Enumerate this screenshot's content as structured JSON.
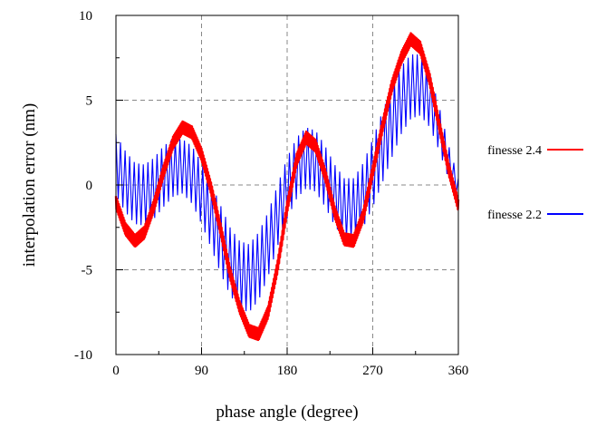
{
  "chart_data": {
    "type": "line",
    "xlabel": "phase angle (degree)",
    "ylabel": "interpolation error (nm)",
    "xlim": [
      0,
      360
    ],
    "ylim": [
      -10,
      10
    ],
    "xticks": [
      0,
      90,
      180,
      270,
      360
    ],
    "yticks": [
      -10,
      -5,
      0,
      5,
      10
    ],
    "grid": true,
    "grid_style": "dashed",
    "legend_position": "right",
    "series": [
      {
        "name": "finesse 2.4",
        "color": "#ff0000",
        "style": "thick, slightly jittered",
        "x": [
          0,
          10,
          20,
          30,
          40,
          50,
          60,
          70,
          80,
          90,
          100,
          110,
          120,
          130,
          140,
          150,
          160,
          170,
          180,
          190,
          200,
          210,
          220,
          230,
          240,
          250,
          260,
          270,
          280,
          290,
          300,
          310,
          320,
          330,
          340,
          350,
          360
        ],
        "y": [
          -1.0,
          -2.6,
          -3.3,
          -2.8,
          -1.2,
          0.8,
          2.5,
          3.4,
          3.1,
          1.8,
          -0.2,
          -2.6,
          -5.2,
          -7.2,
          -8.6,
          -8.8,
          -7.5,
          -4.8,
          -1.3,
          1.5,
          2.8,
          2.3,
          0.6,
          -1.6,
          -3.2,
          -3.3,
          -1.8,
          0.8,
          3.4,
          5.8,
          7.5,
          8.6,
          8.1,
          6.2,
          3.5,
          0.9,
          -1.2
        ]
      },
      {
        "name": "finesse 2.2",
        "color": "#0000ff",
        "style": "oscillating envelope",
        "x": [
          0,
          10,
          20,
          30,
          40,
          50,
          60,
          70,
          80,
          90,
          100,
          110,
          120,
          130,
          140,
          150,
          160,
          170,
          180,
          190,
          200,
          210,
          220,
          230,
          240,
          250,
          260,
          270,
          280,
          290,
          300,
          310,
          320,
          330,
          340,
          350,
          360
        ],
        "y": [
          1.2,
          0.2,
          -0.5,
          -0.6,
          -0.2,
          0.5,
          1.0,
          1.1,
          0.6,
          -0.5,
          -1.8,
          -3.2,
          -4.5,
          -5.3,
          -5.5,
          -4.8,
          -3.5,
          -1.8,
          -0.2,
          1.0,
          1.6,
          1.4,
          0.5,
          -0.6,
          -1.4,
          -1.4,
          -0.6,
          0.7,
          2.2,
          3.7,
          5.0,
          5.8,
          5.9,
          5.0,
          3.3,
          1.3,
          -0.2
        ],
        "amplitude": [
          1.8,
          1.8,
          1.8,
          1.8,
          1.8,
          1.8,
          1.7,
          1.6,
          1.7,
          1.8,
          1.9,
          2.0,
          2.0,
          2.0,
          2.0,
          2.0,
          1.9,
          1.8,
          1.8,
          1.8,
          1.8,
          1.8,
          1.8,
          1.8,
          1.8,
          1.8,
          1.9,
          2.0,
          2.1,
          2.1,
          2.0,
          1.9,
          1.8,
          1.6,
          1.3,
          1.0,
          0.6
        ]
      }
    ]
  }
}
